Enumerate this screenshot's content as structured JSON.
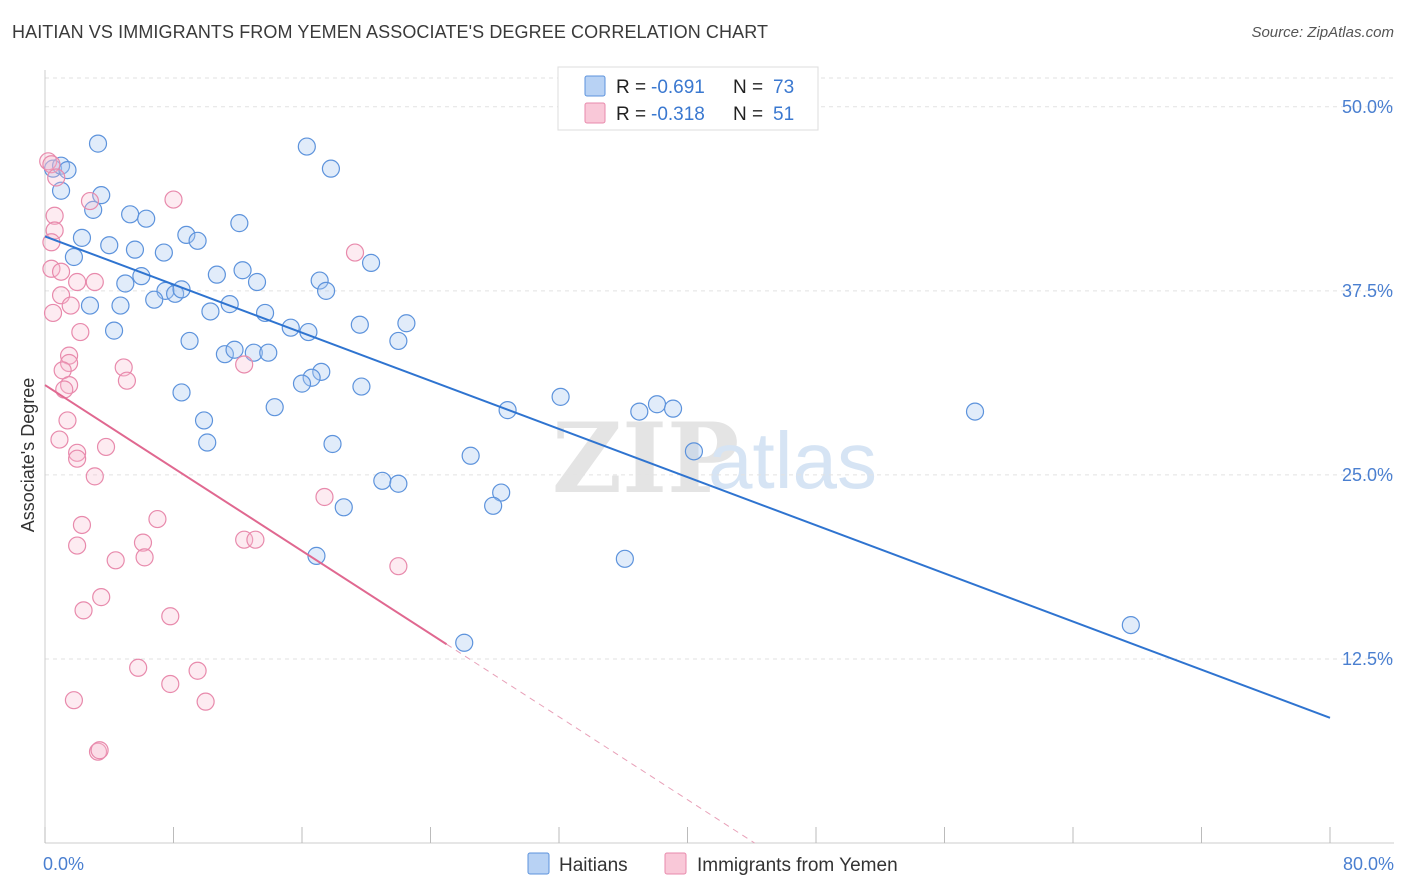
{
  "header": {
    "title": "HAITIAN VS IMMIGRANTS FROM YEMEN ASSOCIATE'S DEGREE CORRELATION CHART",
    "source": "Source: ZipAtlas.com"
  },
  "watermark": {
    "zip": "ZIP",
    "atlas": "atlas"
  },
  "legend": {
    "r_label": "R =",
    "n_label": "N =",
    "entries": [
      {
        "r": "-0.691",
        "n": "73",
        "color": "#a9c8f0"
      },
      {
        "r": "-0.318",
        "n": "51",
        "color": "#f7bcd0"
      }
    ]
  },
  "bottom_legend": [
    "Haitians",
    "Immigrants from Yemen"
  ],
  "chart_data": {
    "type": "scatter",
    "title": "HAITIAN VS IMMIGRANTS FROM YEMEN ASSOCIATE'S DEGREE CORRELATION CHART",
    "xlabel": "",
    "ylabel": "Associate's Degree",
    "xlim": [
      0,
      80
    ],
    "ylim": [
      0,
      52.5
    ],
    "x_tick_labels": [
      "0.0%",
      "80.0%"
    ],
    "y_ticks": [
      12.5,
      25.0,
      37.5,
      50.0
    ],
    "y_tick_labels": [
      "12.5%",
      "25.0%",
      "37.5%",
      "50.0%"
    ],
    "grid": true,
    "colors": {
      "haitians": "#4a86d8",
      "yemen": "#e47aa0",
      "haitians_line": "#2f74d0",
      "yemen_line": "#e06890"
    },
    "series": [
      {
        "name": "Haitians",
        "trend": {
          "x": [
            0,
            80
          ],
          "y": [
            41.2,
            8.5
          ]
        },
        "points": [
          [
            0.5,
            45.8
          ],
          [
            1.0,
            46.0
          ],
          [
            1.4,
            45.7
          ],
          [
            1.0,
            44.3
          ],
          [
            3.3,
            47.5
          ],
          [
            3.5,
            44.0
          ],
          [
            3.0,
            43.0
          ],
          [
            5.3,
            42.7
          ],
          [
            6.3,
            42.4
          ],
          [
            2.3,
            41.1
          ],
          [
            4.0,
            40.6
          ],
          [
            5.6,
            40.3
          ],
          [
            7.4,
            40.1
          ],
          [
            1.8,
            39.8
          ],
          [
            8.8,
            41.3
          ],
          [
            9.5,
            40.9
          ],
          [
            12.1,
            42.1
          ],
          [
            12.3,
            38.9
          ],
          [
            10.7,
            38.6
          ],
          [
            6.0,
            38.5
          ],
          [
            5.0,
            38.0
          ],
          [
            13.2,
            38.1
          ],
          [
            7.5,
            37.5
          ],
          [
            8.1,
            37.3
          ],
          [
            8.5,
            37.6
          ],
          [
            6.8,
            36.9
          ],
          [
            2.8,
            36.5
          ],
          [
            4.7,
            36.5
          ],
          [
            11.5,
            36.6
          ],
          [
            10.3,
            36.1
          ],
          [
            13.7,
            36.0
          ],
          [
            15.3,
            35.0
          ],
          [
            4.3,
            34.8
          ],
          [
            9.0,
            34.1
          ],
          [
            11.2,
            33.2
          ],
          [
            11.8,
            33.5
          ],
          [
            13.0,
            33.3
          ],
          [
            13.9,
            33.3
          ],
          [
            17.2,
            32.0
          ],
          [
            16.6,
            31.6
          ],
          [
            16.0,
            31.2
          ],
          [
            8.5,
            30.6
          ],
          [
            14.3,
            29.6
          ],
          [
            9.9,
            28.7
          ],
          [
            10.1,
            27.2
          ],
          [
            17.9,
            27.1
          ],
          [
            16.4,
            34.7
          ],
          [
            17.1,
            38.2
          ],
          [
            17.5,
            37.5
          ],
          [
            20.3,
            39.4
          ],
          [
            19.6,
            35.2
          ],
          [
            22.5,
            35.3
          ],
          [
            22.0,
            34.1
          ],
          [
            19.7,
            31.0
          ],
          [
            26.5,
            26.3
          ],
          [
            28.8,
            29.4
          ],
          [
            32.1,
            30.3
          ],
          [
            37.0,
            29.3
          ],
          [
            38.1,
            29.8
          ],
          [
            39.1,
            29.5
          ],
          [
            40.4,
            26.6
          ],
          [
            57.9,
            29.3
          ],
          [
            21.0,
            24.6
          ],
          [
            22.0,
            24.4
          ],
          [
            28.4,
            23.8
          ],
          [
            27.9,
            22.9
          ],
          [
            18.6,
            22.8
          ],
          [
            16.9,
            19.5
          ],
          [
            36.1,
            19.3
          ],
          [
            26.1,
            13.6
          ],
          [
            67.6,
            14.8
          ],
          [
            16.3,
            47.3
          ],
          [
            17.8,
            45.8
          ]
        ]
      },
      {
        "name": "Immigrants from Yemen",
        "trend": {
          "x": [
            0,
            25
          ],
          "y": [
            31.1,
            13.5
          ]
        },
        "trend_dashed": {
          "x": [
            25,
            50
          ],
          "y": [
            13.5,
            -4.1
          ]
        },
        "points": [
          [
            0.2,
            46.3
          ],
          [
            0.4,
            46.1
          ],
          [
            0.7,
            45.2
          ],
          [
            2.8,
            43.6
          ],
          [
            8.0,
            43.7
          ],
          [
            0.6,
            42.6
          ],
          [
            0.6,
            41.6
          ],
          [
            0.4,
            40.8
          ],
          [
            19.3,
            40.1
          ],
          [
            0.4,
            39.0
          ],
          [
            1.0,
            38.8
          ],
          [
            2.0,
            38.1
          ],
          [
            3.1,
            38.1
          ],
          [
            1.0,
            37.2
          ],
          [
            1.6,
            36.5
          ],
          [
            0.5,
            36.0
          ],
          [
            2.2,
            34.7
          ],
          [
            1.5,
            33.1
          ],
          [
            1.5,
            32.6
          ],
          [
            1.1,
            32.1
          ],
          [
            4.9,
            32.3
          ],
          [
            5.1,
            31.4
          ],
          [
            1.5,
            31.1
          ],
          [
            1.2,
            30.8
          ],
          [
            1.4,
            28.7
          ],
          [
            0.9,
            27.4
          ],
          [
            3.8,
            26.9
          ],
          [
            2.0,
            26.5
          ],
          [
            2.0,
            26.1
          ],
          [
            3.1,
            24.9
          ],
          [
            17.4,
            23.5
          ],
          [
            7.0,
            22.0
          ],
          [
            2.3,
            21.6
          ],
          [
            6.1,
            20.4
          ],
          [
            12.4,
            20.6
          ],
          [
            13.1,
            20.6
          ],
          [
            2.0,
            20.2
          ],
          [
            4.4,
            19.2
          ],
          [
            6.2,
            19.4
          ],
          [
            22.0,
            18.8
          ],
          [
            3.5,
            16.7
          ],
          [
            2.4,
            15.8
          ],
          [
            7.8,
            15.4
          ],
          [
            5.8,
            11.9
          ],
          [
            9.5,
            11.7
          ],
          [
            7.8,
            10.8
          ],
          [
            1.8,
            9.7
          ],
          [
            10.0,
            9.6
          ],
          [
            3.3,
            6.2
          ],
          [
            3.4,
            6.3
          ],
          [
            12.4,
            32.5
          ]
        ]
      }
    ]
  }
}
